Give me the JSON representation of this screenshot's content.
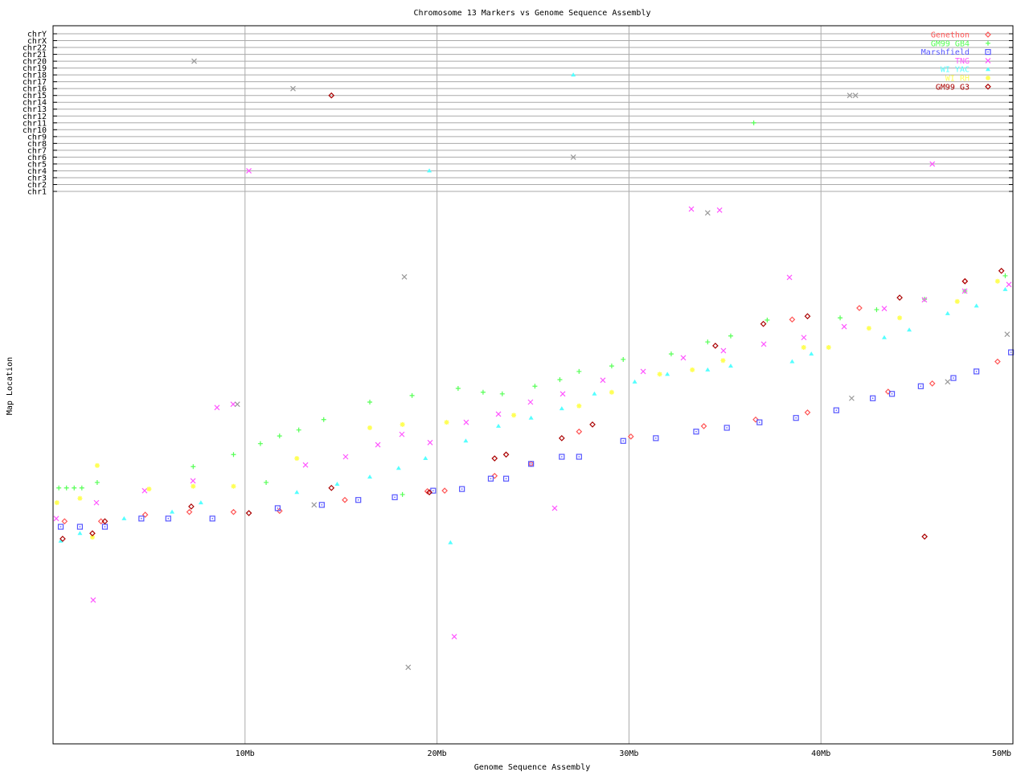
{
  "chart_data": {
    "type": "scatter",
    "title": "Chromosome 13 Markers vs Genome Sequence Assembly",
    "xlabel": "Genome Sequence Assembly",
    "ylabel": "Map Location",
    "xlim": [
      0,
      50
    ],
    "x_ticks": [
      {
        "value": 10,
        "label": "10Mb"
      },
      {
        "value": 20,
        "label": "20Mb"
      },
      {
        "value": 30,
        "label": "30Mb"
      },
      {
        "value": 40,
        "label": "40Mb"
      },
      {
        "value": 50,
        "label": "50Mb"
      }
    ],
    "ylim": [
      0,
      100
    ],
    "chromosome_rows": [
      "chrY",
      "chrX",
      "chr22",
      "chr21",
      "chr20",
      "chr19",
      "chr18",
      "chr17",
      "chr16",
      "chr15",
      "chr14",
      "chr13",
      "chr12",
      "chr11",
      "chr10",
      "chr9",
      "chr8",
      "chr7",
      "chr6",
      "chr5",
      "chr4",
      "chr3",
      "chr2",
      "chr1"
    ],
    "grid": true,
    "legend_position": "top-right",
    "series": [
      {
        "name": "Genethon",
        "color": "#ff5555",
        "marker": "diamond",
        "points": [
          [
            0.6,
            40.7
          ],
          [
            2.5,
            40.7
          ],
          [
            4.8,
            41.9
          ],
          [
            7.1,
            42.4
          ],
          [
            9.4,
            42.4
          ],
          [
            11.8,
            42.6
          ],
          [
            15.2,
            44.6
          ],
          [
            19.5,
            46.2
          ],
          [
            20.4,
            46.3
          ],
          [
            23.0,
            49.0
          ],
          [
            24.9,
            51.2
          ],
          [
            27.4,
            57.1
          ],
          [
            30.1,
            56.2
          ],
          [
            33.9,
            58.1
          ],
          [
            36.6,
            59.3
          ],
          [
            39.3,
            60.6
          ],
          [
            42.0,
            79.7
          ],
          [
            43.5,
            64.4
          ],
          [
            45.8,
            65.9
          ],
          [
            47.5,
            84.6
          ],
          [
            38.5,
            77.6
          ],
          [
            49.2,
            69.9
          ]
        ],
        "chr_points": []
      },
      {
        "name": "GM99 GB4",
        "color": "#55ff55",
        "marker": "plus",
        "points": [
          [
            0.3,
            46.8
          ],
          [
            0.7,
            46.8
          ],
          [
            1.1,
            46.8
          ],
          [
            1.5,
            46.8
          ],
          [
            2.3,
            47.8
          ],
          [
            7.3,
            50.7
          ],
          [
            9.4,
            52.9
          ],
          [
            10.8,
            54.9
          ],
          [
            11.8,
            56.3
          ],
          [
            12.8,
            57.4
          ],
          [
            14.1,
            59.3
          ],
          [
            16.5,
            62.5
          ],
          [
            18.7,
            63.7
          ],
          [
            21.1,
            65.0
          ],
          [
            22.4,
            64.3
          ],
          [
            23.4,
            64.0
          ],
          [
            25.1,
            65.4
          ],
          [
            26.4,
            66.6
          ],
          [
            27.4,
            68.1
          ],
          [
            29.1,
            69.1
          ],
          [
            29.7,
            70.3
          ],
          [
            32.2,
            71.3
          ],
          [
            34.1,
            73.5
          ],
          [
            35.3,
            74.6
          ],
          [
            37.2,
            77.5
          ],
          [
            41.0,
            77.9
          ],
          [
            42.9,
            79.4
          ],
          [
            45.4,
            81.3
          ],
          [
            47.5,
            82.8
          ],
          [
            49.6,
            85.6
          ],
          [
            11.1,
            47.8
          ],
          [
            18.2,
            45.6
          ]
        ],
        "chr_points": [
          {
            "x": 36.5,
            "chr": "chr11"
          }
        ]
      },
      {
        "name": "Marshfield",
        "color": "#5555ff",
        "marker": "square",
        "points": [
          [
            0.4,
            39.7
          ],
          [
            1.4,
            39.7
          ],
          [
            2.7,
            39.7
          ],
          [
            4.6,
            41.2
          ],
          [
            6.0,
            41.2
          ],
          [
            8.3,
            41.2
          ],
          [
            11.7,
            43.1
          ],
          [
            14.0,
            43.7
          ],
          [
            15.9,
            44.6
          ],
          [
            17.8,
            45.1
          ],
          [
            19.8,
            46.3
          ],
          [
            21.3,
            46.6
          ],
          [
            22.8,
            48.5
          ],
          [
            23.6,
            48.5
          ],
          [
            24.9,
            51.2
          ],
          [
            26.5,
            52.5
          ],
          [
            27.4,
            52.5
          ],
          [
            29.7,
            55.4
          ],
          [
            31.4,
            55.9
          ],
          [
            33.5,
            57.1
          ],
          [
            35.1,
            57.8
          ],
          [
            36.8,
            58.8
          ],
          [
            38.7,
            59.6
          ],
          [
            40.8,
            61.0
          ],
          [
            42.7,
            63.2
          ],
          [
            43.7,
            64.0
          ],
          [
            45.2,
            65.4
          ],
          [
            46.9,
            66.9
          ],
          [
            48.1,
            68.1
          ],
          [
            49.9,
            71.6
          ]
        ],
        "chr_points": []
      },
      {
        "name": "TNG",
        "color": "#ff55ff",
        "marker": "x",
        "points": [
          [
            0.17,
            41.2
          ],
          [
            2.26,
            44.1
          ],
          [
            4.77,
            46.3
          ],
          [
            7.29,
            48.1
          ],
          [
            8.54,
            61.5
          ],
          [
            9.38,
            62.1
          ],
          [
            13.15,
            51.0
          ],
          [
            15.24,
            52.5
          ],
          [
            16.92,
            54.7
          ],
          [
            18.17,
            56.6
          ],
          [
            19.64,
            55.1
          ],
          [
            21.52,
            58.8
          ],
          [
            23.2,
            60.3
          ],
          [
            24.87,
            62.5
          ],
          [
            26.55,
            64.0
          ],
          [
            28.64,
            66.5
          ],
          [
            30.74,
            68.1
          ],
          [
            32.83,
            70.6
          ],
          [
            34.92,
            71.9
          ],
          [
            37.02,
            73.1
          ],
          [
            39.11,
            74.3
          ],
          [
            41.21,
            76.3
          ],
          [
            43.3,
            79.6
          ],
          [
            45.39,
            81.2
          ],
          [
            47.49,
            82.8
          ],
          [
            49.79,
            84.0
          ],
          [
            33.25,
            97.8
          ],
          [
            34.72,
            97.6
          ],
          [
            38.36,
            85.3
          ],
          [
            2.09,
            26.3
          ],
          [
            20.9,
            19.6
          ],
          [
            26.13,
            43.1
          ]
        ],
        "chr_points": [
          {
            "x": 10.2,
            "chr": "chr4"
          },
          {
            "x": 45.8,
            "chr": "chr5"
          }
        ]
      },
      {
        "name": "WI YAC",
        "color": "#55ffff",
        "marker": "triangle",
        "points": [
          [
            0.4,
            37.1
          ],
          [
            1.4,
            38.5
          ],
          [
            3.7,
            41.2
          ],
          [
            6.2,
            42.4
          ],
          [
            7.7,
            44.1
          ],
          [
            12.7,
            46.0
          ],
          [
            14.8,
            47.5
          ],
          [
            16.5,
            48.8
          ],
          [
            18.0,
            50.4
          ],
          [
            19.4,
            52.2
          ],
          [
            21.5,
            55.4
          ],
          [
            23.2,
            58.1
          ],
          [
            24.9,
            59.6
          ],
          [
            26.5,
            61.3
          ],
          [
            28.2,
            64.0
          ],
          [
            30.3,
            66.2
          ],
          [
            32.0,
            67.6
          ],
          [
            34.1,
            68.4
          ],
          [
            35.3,
            69.1
          ],
          [
            38.5,
            69.9
          ],
          [
            39.5,
            71.3
          ],
          [
            43.3,
            74.3
          ],
          [
            44.6,
            75.7
          ],
          [
            46.6,
            78.7
          ],
          [
            48.1,
            80.1
          ],
          [
            49.6,
            83.1
          ],
          [
            20.7,
            36.8
          ]
        ],
        "chr_points": [
          {
            "x": 27.1,
            "chr": "chr18"
          },
          {
            "x": 19.6,
            "chr": "chr4"
          }
        ]
      },
      {
        "name": "WI RH",
        "color": "#ffff55",
        "marker": "star",
        "points": [
          [
            0.2,
            44.1
          ],
          [
            1.4,
            44.9
          ],
          [
            2.3,
            50.9
          ],
          [
            5.0,
            46.6
          ],
          [
            7.3,
            47.1
          ],
          [
            9.4,
            47.1
          ],
          [
            12.7,
            52.2
          ],
          [
            16.5,
            57.8
          ],
          [
            18.2,
            58.4
          ],
          [
            20.5,
            58.8
          ],
          [
            24.0,
            60.1
          ],
          [
            27.4,
            61.8
          ],
          [
            29.1,
            64.3
          ],
          [
            31.6,
            67.6
          ],
          [
            33.3,
            68.4
          ],
          [
            34.9,
            70.1
          ],
          [
            39.1,
            72.5
          ],
          [
            40.4,
            72.5
          ],
          [
            42.5,
            76.0
          ],
          [
            44.1,
            77.9
          ],
          [
            47.1,
            80.9
          ],
          [
            49.2,
            84.6
          ],
          [
            2.05,
            37.8
          ]
        ],
        "chr_points": []
      },
      {
        "name": "GM99 G3",
        "color": "#aa0000",
        "marker": "diamond",
        "points": [
          [
            0.5,
            37.5
          ],
          [
            2.05,
            38.5
          ],
          [
            2.7,
            40.7
          ],
          [
            7.2,
            43.4
          ],
          [
            10.2,
            42.2
          ],
          [
            14.5,
            46.8
          ],
          [
            19.6,
            46.0
          ],
          [
            23.0,
            52.2
          ],
          [
            23.6,
            52.9
          ],
          [
            26.5,
            55.9
          ],
          [
            28.1,
            58.4
          ],
          [
            34.5,
            72.8
          ],
          [
            37.0,
            76.8
          ],
          [
            39.3,
            78.2
          ],
          [
            44.1,
            81.6
          ],
          [
            45.4,
            37.9
          ],
          [
            47.5,
            84.6
          ],
          [
            49.4,
            86.5
          ]
        ],
        "chr_points": [
          {
            "x": 14.5,
            "chr": "chr15"
          }
        ]
      },
      {
        "color": "#999999",
        "marker": "x",
        "points": [
          [
            18.3,
            85.4
          ],
          [
            18.5,
            14.0
          ],
          [
            9.6,
            62.1
          ],
          [
            49.7,
            74.9
          ],
          [
            34.1,
            97.1
          ],
          [
            41.6,
            63.2
          ],
          [
            46.6,
            66.2
          ],
          [
            13.6,
            43.7
          ]
        ],
        "chr_points": [
          {
            "x": 7.35,
            "chr": "chr20"
          },
          {
            "x": 12.5,
            "chr": "chr16"
          },
          {
            "x": 41.5,
            "chr": "chr15"
          },
          {
            "x": 41.8,
            "chr": "chr15"
          },
          {
            "x": 27.1,
            "chr": "chr6"
          }
        ]
      }
    ]
  }
}
